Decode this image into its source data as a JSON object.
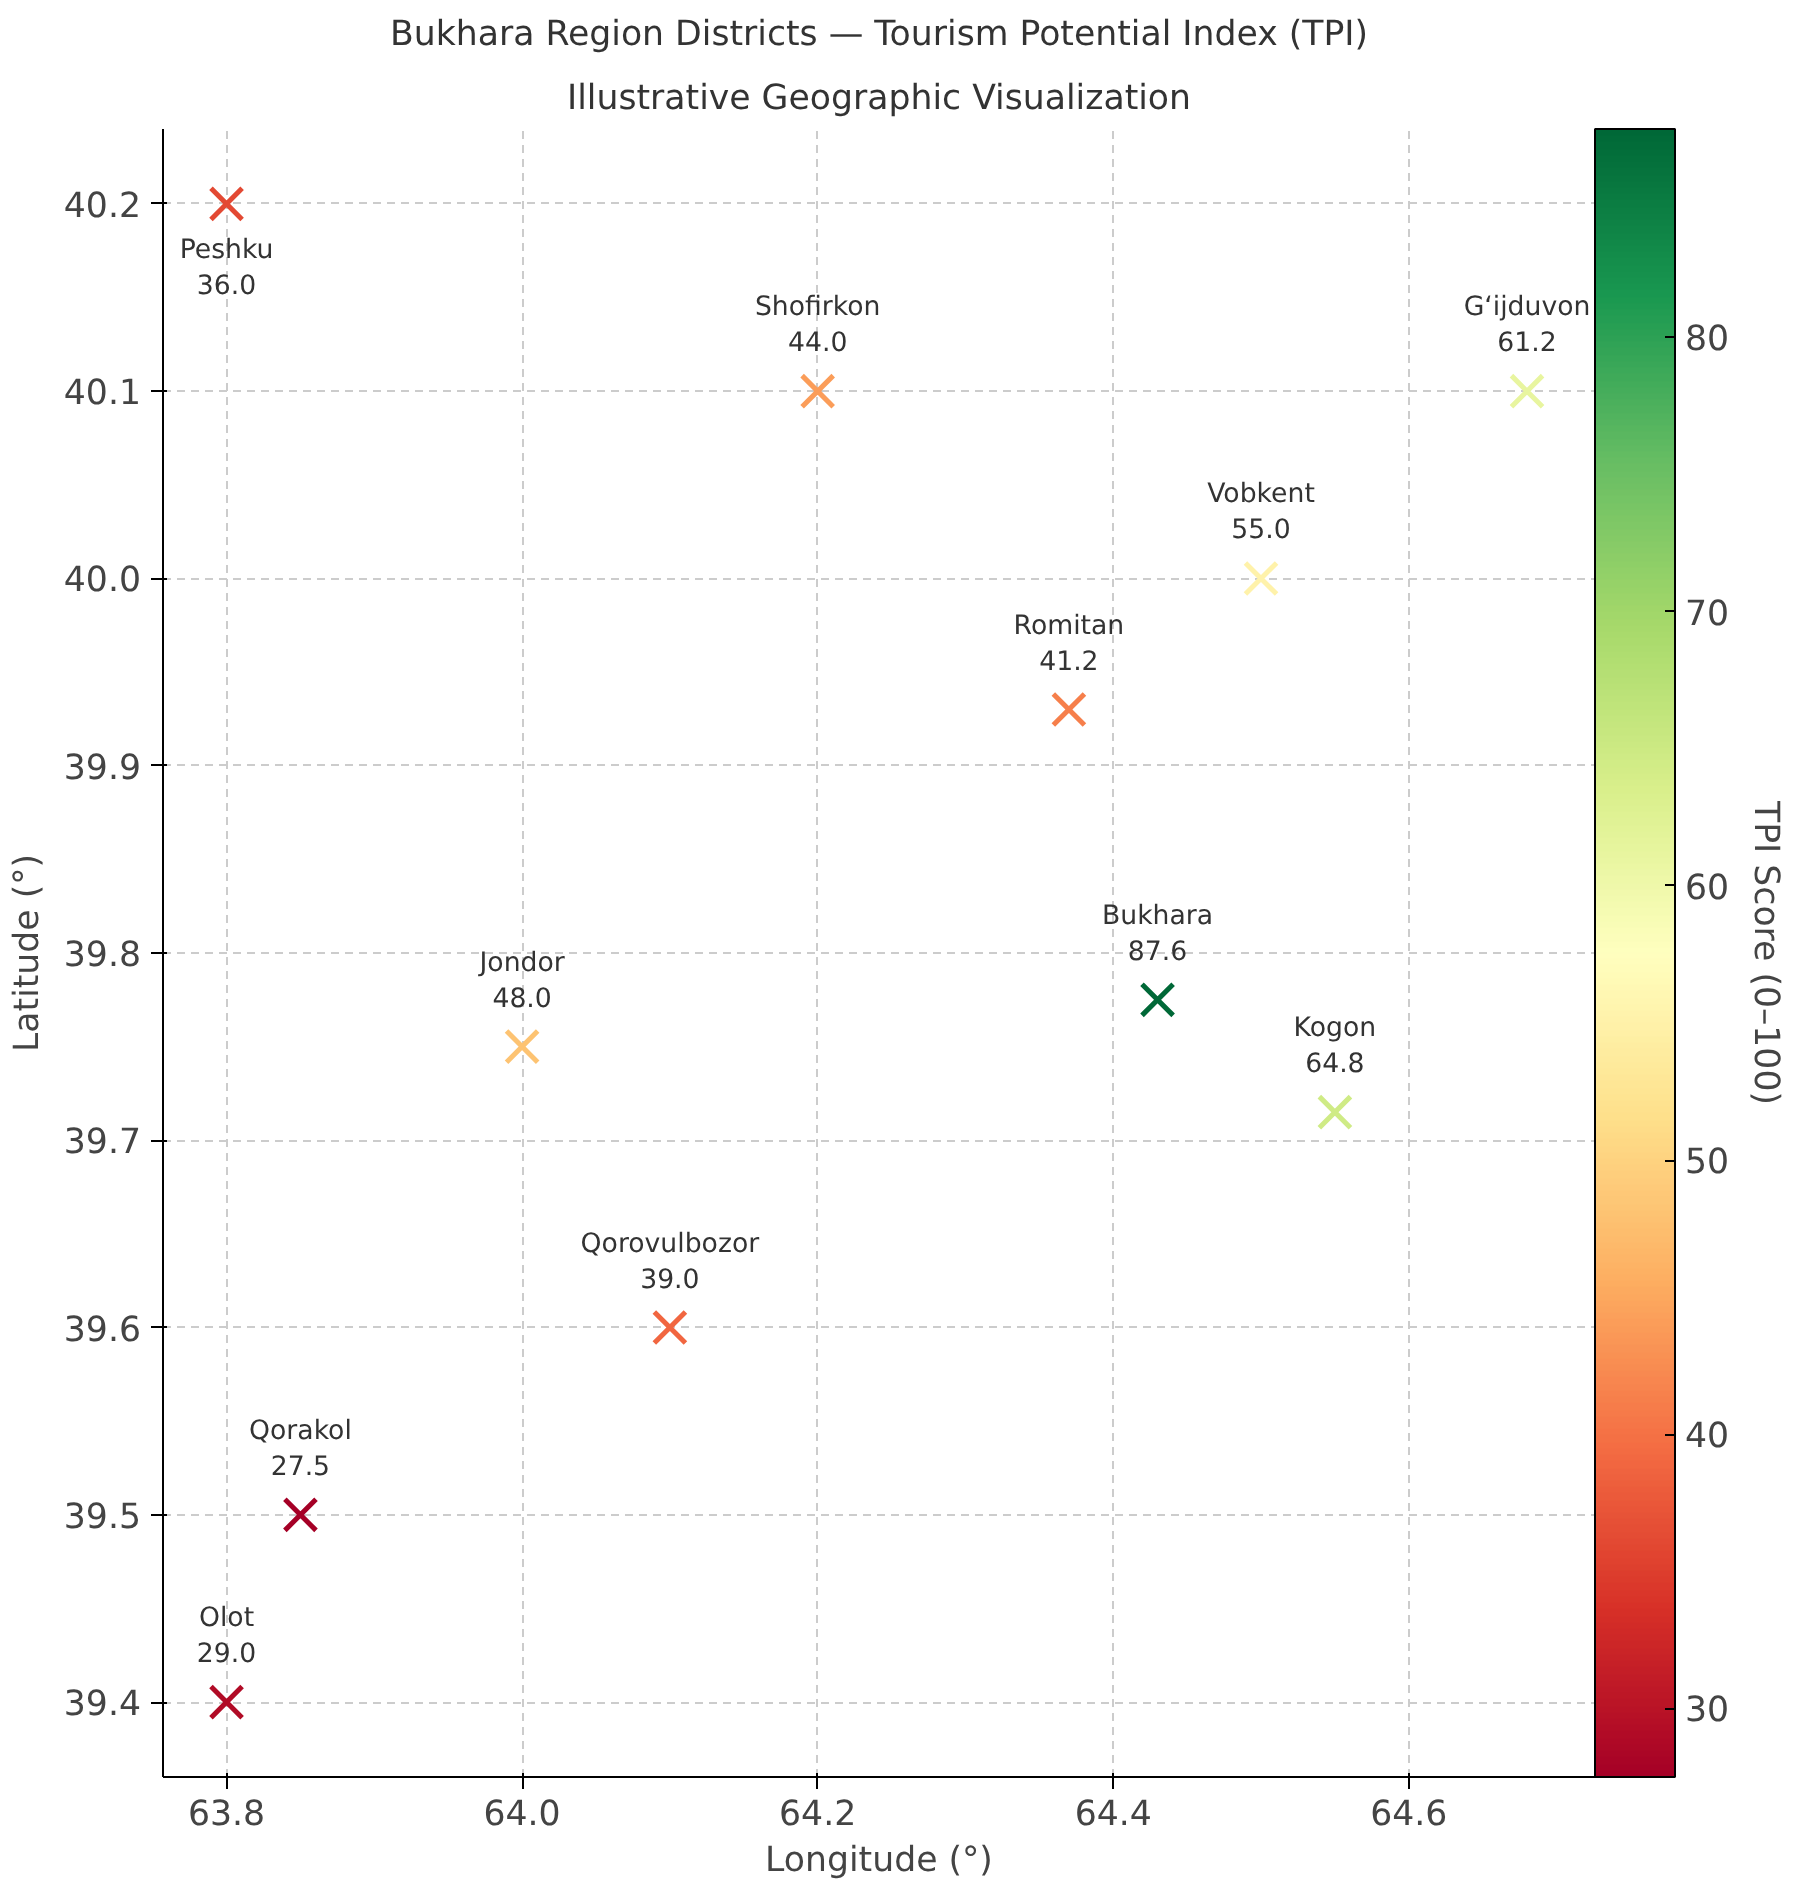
{
  "chart_data": {
    "type": "scatter",
    "title": "Bukhara Region Districts — Tourism Potential Index (TPI)",
    "subtitle": "Illustrative Geographic Visualization",
    "xlabel": "Longitude (°)",
    "ylabel": "Latitude (°)",
    "clabel": "TPI Score (0–100)",
    "x": [
      63.8,
      64.2,
      64.68,
      64.5,
      64.37,
      64.43,
      64.55,
      64.0,
      64.1,
      63.85,
      63.8
    ],
    "values": [
      40.2,
      40.1,
      40.1,
      40.0,
      39.93,
      39.775,
      39.715,
      39.75,
      39.6,
      39.5,
      39.4
    ],
    "cvalues": [
      36.0,
      44.0,
      61.2,
      55.0,
      41.2,
      87.6,
      64.8,
      48.0,
      39.0,
      27.5,
      29.0
    ],
    "annotations": [
      {
        "text": "Peshku\n36.0",
        "x": 63.8,
        "y": 40.2
      },
      {
        "text": "Shofirkon\n44.0",
        "x": 64.2,
        "y": 40.1
      },
      {
        "text": "G‘ijduvon\n61.2",
        "x": 64.68,
        "y": 40.1
      },
      {
        "text": "Vobkent\n55.0",
        "x": 64.5,
        "y": 40.0
      },
      {
        "text": "Romitan\n41.2",
        "x": 64.37,
        "y": 39.93
      },
      {
        "text": "Bukhara\n87.6",
        "x": 64.43,
        "y": 39.775
      },
      {
        "text": "Kogon\n64.8",
        "x": 64.55,
        "y": 39.715
      },
      {
        "text": "Jondor\n48.0",
        "x": 64.0,
        "y": 39.75
      },
      {
        "text": "Qorovulbozor\n39.0",
        "x": 64.1,
        "y": 39.6
      },
      {
        "text": "Qorakol\n27.5",
        "x": 63.85,
        "y": 39.5
      },
      {
        "text": "Olot\n29.0",
        "x": 63.8,
        "y": 39.4
      }
    ],
    "xlim": [
      63.757,
      64.726
    ],
    "ylim": [
      39.36,
      40.24
    ],
    "xticks": [
      {
        "value": 63.8,
        "label": "63.8"
      },
      {
        "value": 64.0,
        "label": "64.0"
      },
      {
        "value": 64.2,
        "label": "64.2"
      },
      {
        "value": 64.4,
        "label": "64.4"
      },
      {
        "value": 64.6,
        "label": "64.6"
      }
    ],
    "yticks": [
      39.4,
      39.5,
      39.6,
      39.7,
      39.8,
      39.9,
      {
        "value": 40.0,
        "label": "40.0"
      },
      40.1,
      40.2
    ],
    "clim": [
      27.5,
      87.6
    ],
    "cticks": [
      30,
      40,
      50,
      60,
      70,
      80
    ],
    "grid": true,
    "marker": "cross"
  }
}
